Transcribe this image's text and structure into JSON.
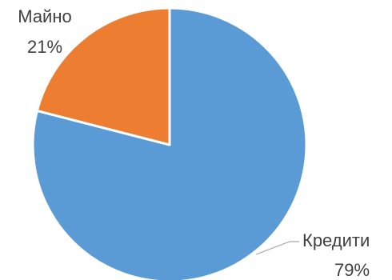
{
  "chart_data": {
    "type": "pie",
    "slices": [
      {
        "label": "Кредити",
        "value": 79,
        "value_label": "79%",
        "color": "#5B9BD5"
      },
      {
        "label": "Майно",
        "value": 21,
        "value_label": "21%",
        "color": "#ED7D31"
      }
    ],
    "start_angle_deg": 0,
    "direction": "clockwise",
    "legend": "none",
    "data_labels": "outside"
  }
}
